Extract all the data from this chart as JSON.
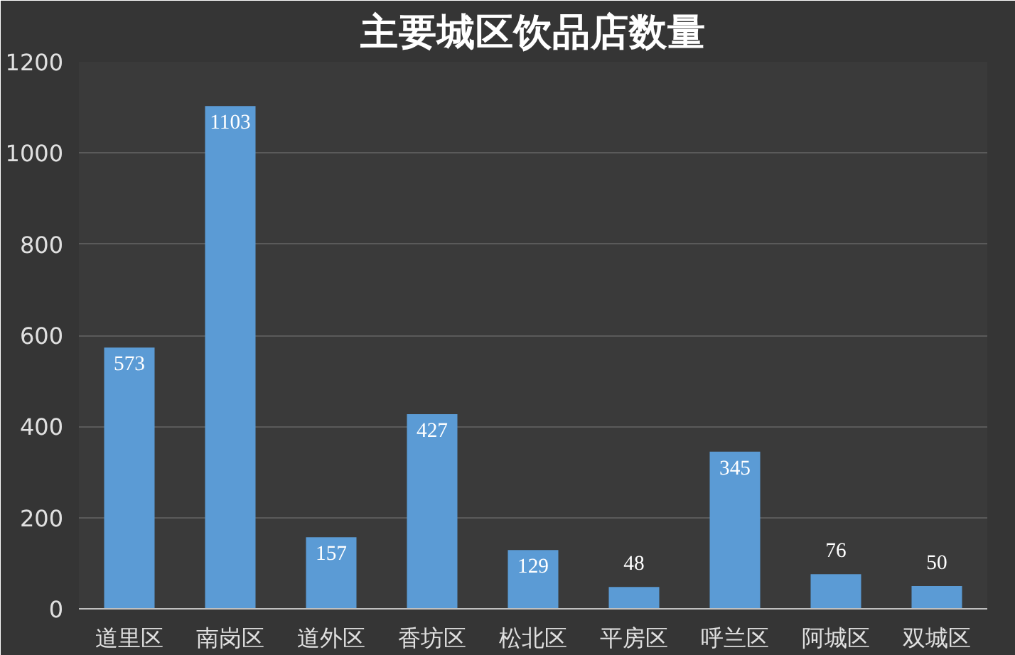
{
  "chart_data": {
    "type": "bar",
    "title": "主要城区饮品店数量",
    "categories": [
      "道里区",
      "南岗区",
      "道外区",
      "香坊区",
      "松北区",
      "平房区",
      "呼兰区",
      "阿城区",
      "双城区"
    ],
    "values": [
      573,
      1103,
      157,
      427,
      129,
      48,
      345,
      76,
      50
    ],
    "color": "#5b9bd5",
    "ylim": [
      0,
      1200
    ],
    "yticks": [
      0,
      200,
      400,
      600,
      800,
      1000,
      1200
    ],
    "grid": "y",
    "data_labels": true
  }
}
